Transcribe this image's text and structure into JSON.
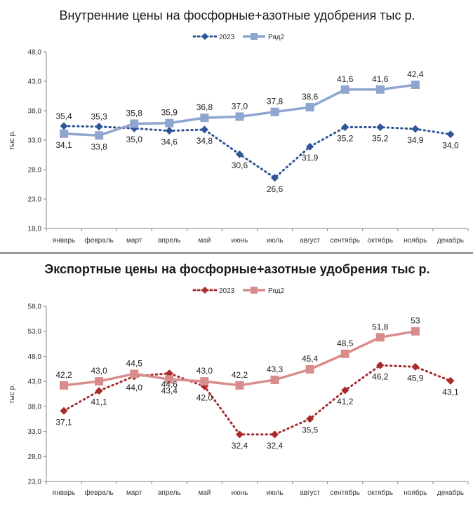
{
  "chart_data": [
    {
      "type": "line",
      "title": "Внутренние цены на фосфорные+азотные удобрения тыс р.",
      "ylabel": "тыс р.",
      "xlabel": "",
      "ylim": [
        18,
        48
      ],
      "yticks": [
        "18,0",
        "23,0",
        "28,0",
        "33,0",
        "38,0",
        "43,0",
        "48,0"
      ],
      "categories": [
        "январь",
        "февраль",
        "март",
        "апрель",
        "май",
        "июнь",
        "июль",
        "август",
        "сентябрь",
        "октябрь",
        "ноябрь",
        "декабрь"
      ],
      "legend_position": "top",
      "grid": false,
      "series": [
        {
          "name": "2023",
          "style": "dotted",
          "marker": "diamond",
          "color": "#2e5597",
          "values": [
            35.4,
            35.3,
            35.0,
            34.6,
            34.8,
            30.6,
            26.6,
            31.9,
            35.2,
            35.2,
            34.9,
            34.0
          ],
          "labels": [
            "35,4",
            "35,3",
            "35,0",
            "34,6",
            "34,8",
            "30,6",
            "26,6",
            "31,9",
            "35,2",
            "35,2",
            "34,9",
            "34,0"
          ]
        },
        {
          "name": "Ряд2",
          "style": "solid",
          "marker": "square",
          "color": "#8ea6d0",
          "values": [
            34.1,
            33.8,
            35.8,
            35.9,
            36.8,
            37.0,
            37.8,
            38.6,
            41.6,
            41.6,
            42.4,
            null
          ],
          "labels": [
            "34,1",
            "33,8",
            "35,8",
            "35,9",
            "36,8",
            "37,0",
            "37,8",
            "38,6",
            "41,6",
            "41,6",
            "42,4",
            ""
          ]
        }
      ]
    },
    {
      "type": "line",
      "title": "Экспортные цены на фосфорные+азотные удобрения тыс р.",
      "ylabel": "тыс р.",
      "xlabel": "",
      "ylim": [
        23,
        58
      ],
      "yticks": [
        "23,0",
        "28,0",
        "33,0",
        "38,0",
        "43,0",
        "48,0",
        "53,0",
        "58,0"
      ],
      "categories": [
        "январь",
        "февраль",
        "март",
        "апрель",
        "май",
        "июнь",
        "июль",
        "август",
        "сентябрь",
        "октябрь",
        "ноябрь",
        "декабрь"
      ],
      "legend_position": "top",
      "grid": false,
      "series": [
        {
          "name": "2023",
          "style": "dotted",
          "marker": "diamond",
          "color": "#a92a2a",
          "values": [
            37.1,
            41.1,
            44.0,
            44.6,
            42.0,
            32.4,
            32.4,
            35.5,
            41.2,
            46.2,
            45.9,
            43.1
          ],
          "labels": [
            "37,1",
            "41,1",
            "44,0",
            "44,6",
            "42,0",
            "32,4",
            "32,4",
            "35,5",
            "41,2",
            "46,2",
            "45,9",
            "43,1"
          ]
        },
        {
          "name": "Ряд2",
          "style": "solid",
          "marker": "square",
          "color": "#d98c8c",
          "values": [
            42.2,
            43.0,
            44.5,
            43.4,
            43.0,
            42.2,
            43.3,
            45.4,
            48.5,
            51.8,
            53.0,
            null
          ],
          "labels": [
            "42,2",
            "43,0",
            "44,5",
            "43,4",
            "43,0",
            "42,2",
            "43,3",
            "45,4",
            "48,5",
            "51,8",
            "53",
            ""
          ]
        }
      ]
    }
  ]
}
